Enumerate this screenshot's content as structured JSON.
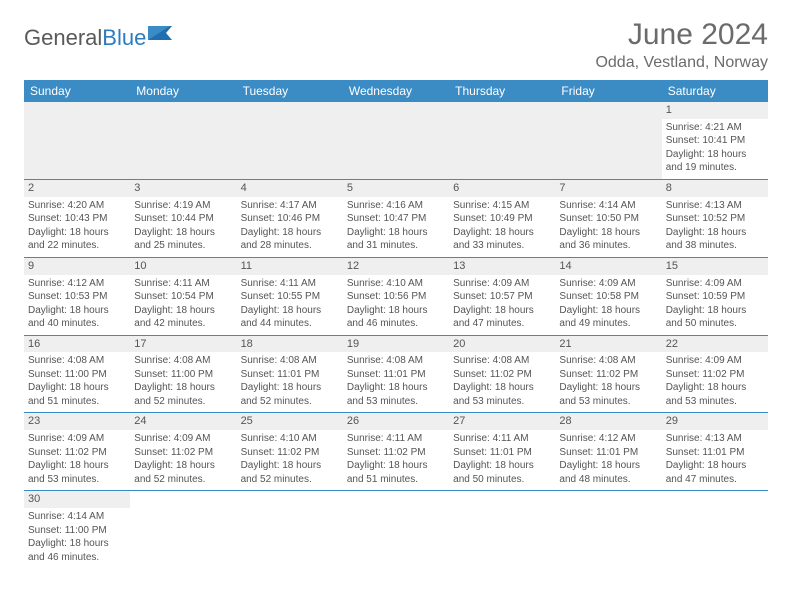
{
  "logo": {
    "text1": "General",
    "text2": "Blue"
  },
  "header": {
    "title": "June 2024",
    "subtitle": "Odda, Vestland, Norway"
  },
  "colors": {
    "header_bg": "#3b8bc4",
    "header_text": "#ffffff",
    "row_stripe": "#efefef",
    "border": "#3b8bc4",
    "text": "#555555"
  },
  "calendar": {
    "day_headers": [
      "Sunday",
      "Monday",
      "Tuesday",
      "Wednesday",
      "Thursday",
      "Friday",
      "Saturday"
    ],
    "weeks": [
      [
        null,
        null,
        null,
        null,
        null,
        null,
        {
          "n": "1",
          "sunrise": "4:21 AM",
          "sunset": "10:41 PM",
          "daylight": "18 hours and 19 minutes."
        }
      ],
      [
        {
          "n": "2",
          "sunrise": "4:20 AM",
          "sunset": "10:43 PM",
          "daylight": "18 hours and 22 minutes."
        },
        {
          "n": "3",
          "sunrise": "4:19 AM",
          "sunset": "10:44 PM",
          "daylight": "18 hours and 25 minutes."
        },
        {
          "n": "4",
          "sunrise": "4:17 AM",
          "sunset": "10:46 PM",
          "daylight": "18 hours and 28 minutes."
        },
        {
          "n": "5",
          "sunrise": "4:16 AM",
          "sunset": "10:47 PM",
          "daylight": "18 hours and 31 minutes."
        },
        {
          "n": "6",
          "sunrise": "4:15 AM",
          "sunset": "10:49 PM",
          "daylight": "18 hours and 33 minutes."
        },
        {
          "n": "7",
          "sunrise": "4:14 AM",
          "sunset": "10:50 PM",
          "daylight": "18 hours and 36 minutes."
        },
        {
          "n": "8",
          "sunrise": "4:13 AM",
          "sunset": "10:52 PM",
          "daylight": "18 hours and 38 minutes."
        }
      ],
      [
        {
          "n": "9",
          "sunrise": "4:12 AM",
          "sunset": "10:53 PM",
          "daylight": "18 hours and 40 minutes."
        },
        {
          "n": "10",
          "sunrise": "4:11 AM",
          "sunset": "10:54 PM",
          "daylight": "18 hours and 42 minutes."
        },
        {
          "n": "11",
          "sunrise": "4:11 AM",
          "sunset": "10:55 PM",
          "daylight": "18 hours and 44 minutes."
        },
        {
          "n": "12",
          "sunrise": "4:10 AM",
          "sunset": "10:56 PM",
          "daylight": "18 hours and 46 minutes."
        },
        {
          "n": "13",
          "sunrise": "4:09 AM",
          "sunset": "10:57 PM",
          "daylight": "18 hours and 47 minutes."
        },
        {
          "n": "14",
          "sunrise": "4:09 AM",
          "sunset": "10:58 PM",
          "daylight": "18 hours and 49 minutes."
        },
        {
          "n": "15",
          "sunrise": "4:09 AM",
          "sunset": "10:59 PM",
          "daylight": "18 hours and 50 minutes."
        }
      ],
      [
        {
          "n": "16",
          "sunrise": "4:08 AM",
          "sunset": "11:00 PM",
          "daylight": "18 hours and 51 minutes."
        },
        {
          "n": "17",
          "sunrise": "4:08 AM",
          "sunset": "11:00 PM",
          "daylight": "18 hours and 52 minutes."
        },
        {
          "n": "18",
          "sunrise": "4:08 AM",
          "sunset": "11:01 PM",
          "daylight": "18 hours and 52 minutes."
        },
        {
          "n": "19",
          "sunrise": "4:08 AM",
          "sunset": "11:01 PM",
          "daylight": "18 hours and 53 minutes."
        },
        {
          "n": "20",
          "sunrise": "4:08 AM",
          "sunset": "11:02 PM",
          "daylight": "18 hours and 53 minutes."
        },
        {
          "n": "21",
          "sunrise": "4:08 AM",
          "sunset": "11:02 PM",
          "daylight": "18 hours and 53 minutes."
        },
        {
          "n": "22",
          "sunrise": "4:09 AM",
          "sunset": "11:02 PM",
          "daylight": "18 hours and 53 minutes."
        }
      ],
      [
        {
          "n": "23",
          "sunrise": "4:09 AM",
          "sunset": "11:02 PM",
          "daylight": "18 hours and 53 minutes."
        },
        {
          "n": "24",
          "sunrise": "4:09 AM",
          "sunset": "11:02 PM",
          "daylight": "18 hours and 52 minutes."
        },
        {
          "n": "25",
          "sunrise": "4:10 AM",
          "sunset": "11:02 PM",
          "daylight": "18 hours and 52 minutes."
        },
        {
          "n": "26",
          "sunrise": "4:11 AM",
          "sunset": "11:02 PM",
          "daylight": "18 hours and 51 minutes."
        },
        {
          "n": "27",
          "sunrise": "4:11 AM",
          "sunset": "11:01 PM",
          "daylight": "18 hours and 50 minutes."
        },
        {
          "n": "28",
          "sunrise": "4:12 AM",
          "sunset": "11:01 PM",
          "daylight": "18 hours and 48 minutes."
        },
        {
          "n": "29",
          "sunrise": "4:13 AM",
          "sunset": "11:01 PM",
          "daylight": "18 hours and 47 minutes."
        }
      ],
      [
        {
          "n": "30",
          "sunrise": "4:14 AM",
          "sunset": "11:00 PM",
          "daylight": "18 hours and 46 minutes."
        },
        null,
        null,
        null,
        null,
        null,
        null
      ]
    ],
    "labels": {
      "sunrise": "Sunrise:",
      "sunset": "Sunset:",
      "daylight": "Daylight:"
    }
  }
}
